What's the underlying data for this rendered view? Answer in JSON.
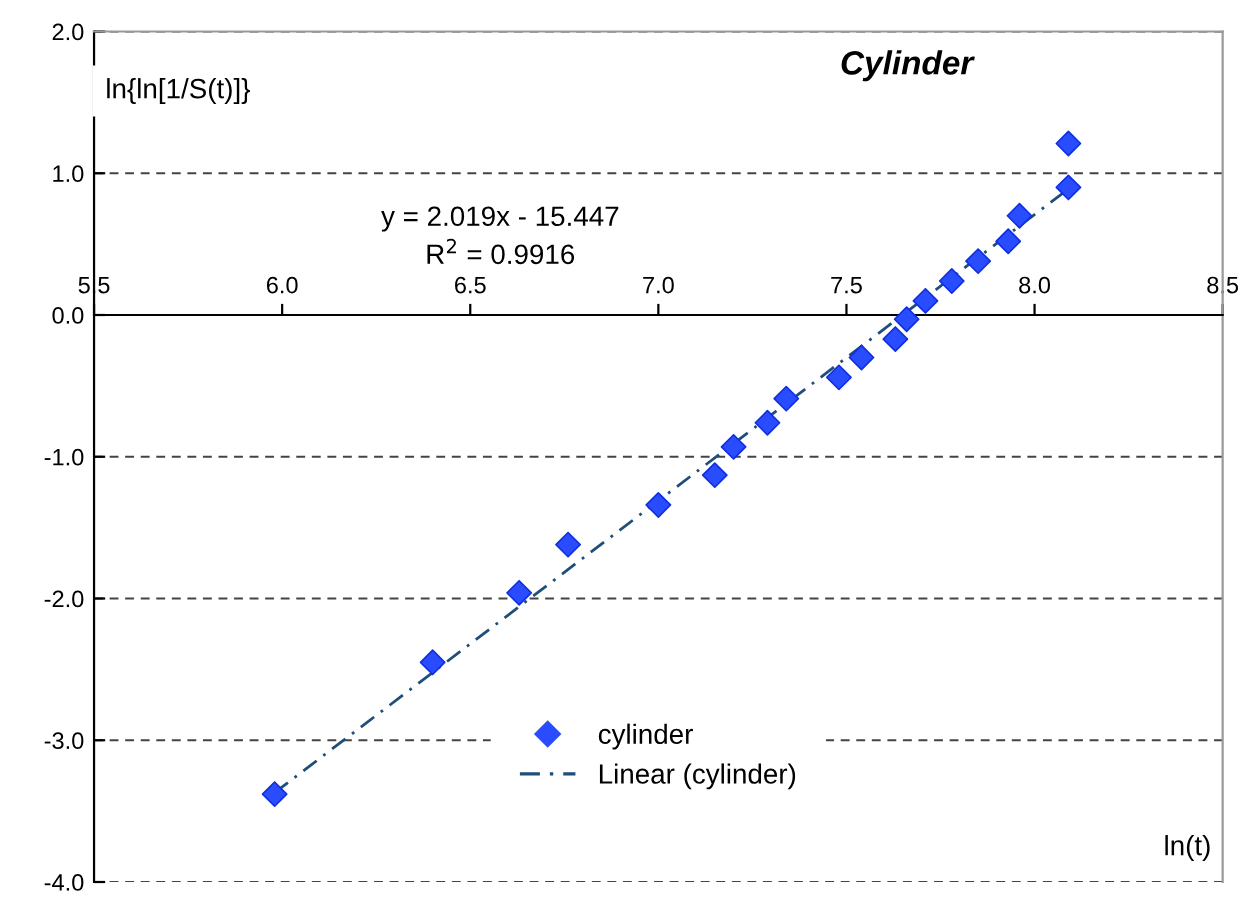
{
  "chart_data": {
    "type": "scatter",
    "title": "Cylinder",
    "xlabel": "ln(t)",
    "ylabel": "ln{ln[1/S(t)]}",
    "annotations": [
      "y = 2.019x - 15.447",
      "R$^{2}$ = 0.9916"
    ],
    "xlim": [
      5.5,
      8.5
    ],
    "ylim": [
      -4.0,
      2.0
    ],
    "xticks": [
      5.5,
      {
        "value": 6,
        "label": "6.0"
      },
      6.5,
      {
        "value": 7,
        "label": "7.0"
      },
      7.5,
      {
        "value": 8,
        "label": "8.0"
      },
      8.5
    ],
    "yticks": [
      {
        "value": -4,
        "label": "-4.0"
      },
      {
        "value": -3,
        "label": "-3.0"
      },
      {
        "value": -2,
        "label": "-2.0"
      },
      {
        "value": -1,
        "label": "-1.0"
      },
      {
        "value": 0,
        "label": "0.0"
      },
      {
        "value": 1,
        "label": "1.0"
      },
      {
        "value": 2,
        "label": "2.0"
      }
    ],
    "grid": "y",
    "legend": "bottom",
    "series": [
      {
        "name": "cylinder",
        "marker": "diamond",
        "color": "#2a4cff",
        "x": [
          5.98,
          6.4,
          6.63,
          6.76,
          7.0,
          7.15,
          7.2,
          7.29,
          7.34,
          7.48,
          7.54,
          7.63,
          7.66,
          7.71,
          7.78,
          7.85,
          7.93,
          7.96,
          8.09,
          8.09
        ],
        "values": [
          -3.38,
          -2.45,
          -1.96,
          -1.62,
          -1.34,
          -1.13,
          -0.93,
          -0.76,
          -0.59,
          -0.44,
          -0.3,
          -0.17,
          -0.03,
          0.1,
          0.24,
          0.38,
          0.52,
          0.7,
          0.9,
          1.21
        ]
      },
      {
        "name": "Linear (cylinder)",
        "type": "line",
        "marker": "none",
        "line_style": "dashed",
        "color": "#1f4e79",
        "x": [
          5.98,
          8.09
        ],
        "values": [
          -3.37,
          0.89
        ]
      }
    ]
  }
}
